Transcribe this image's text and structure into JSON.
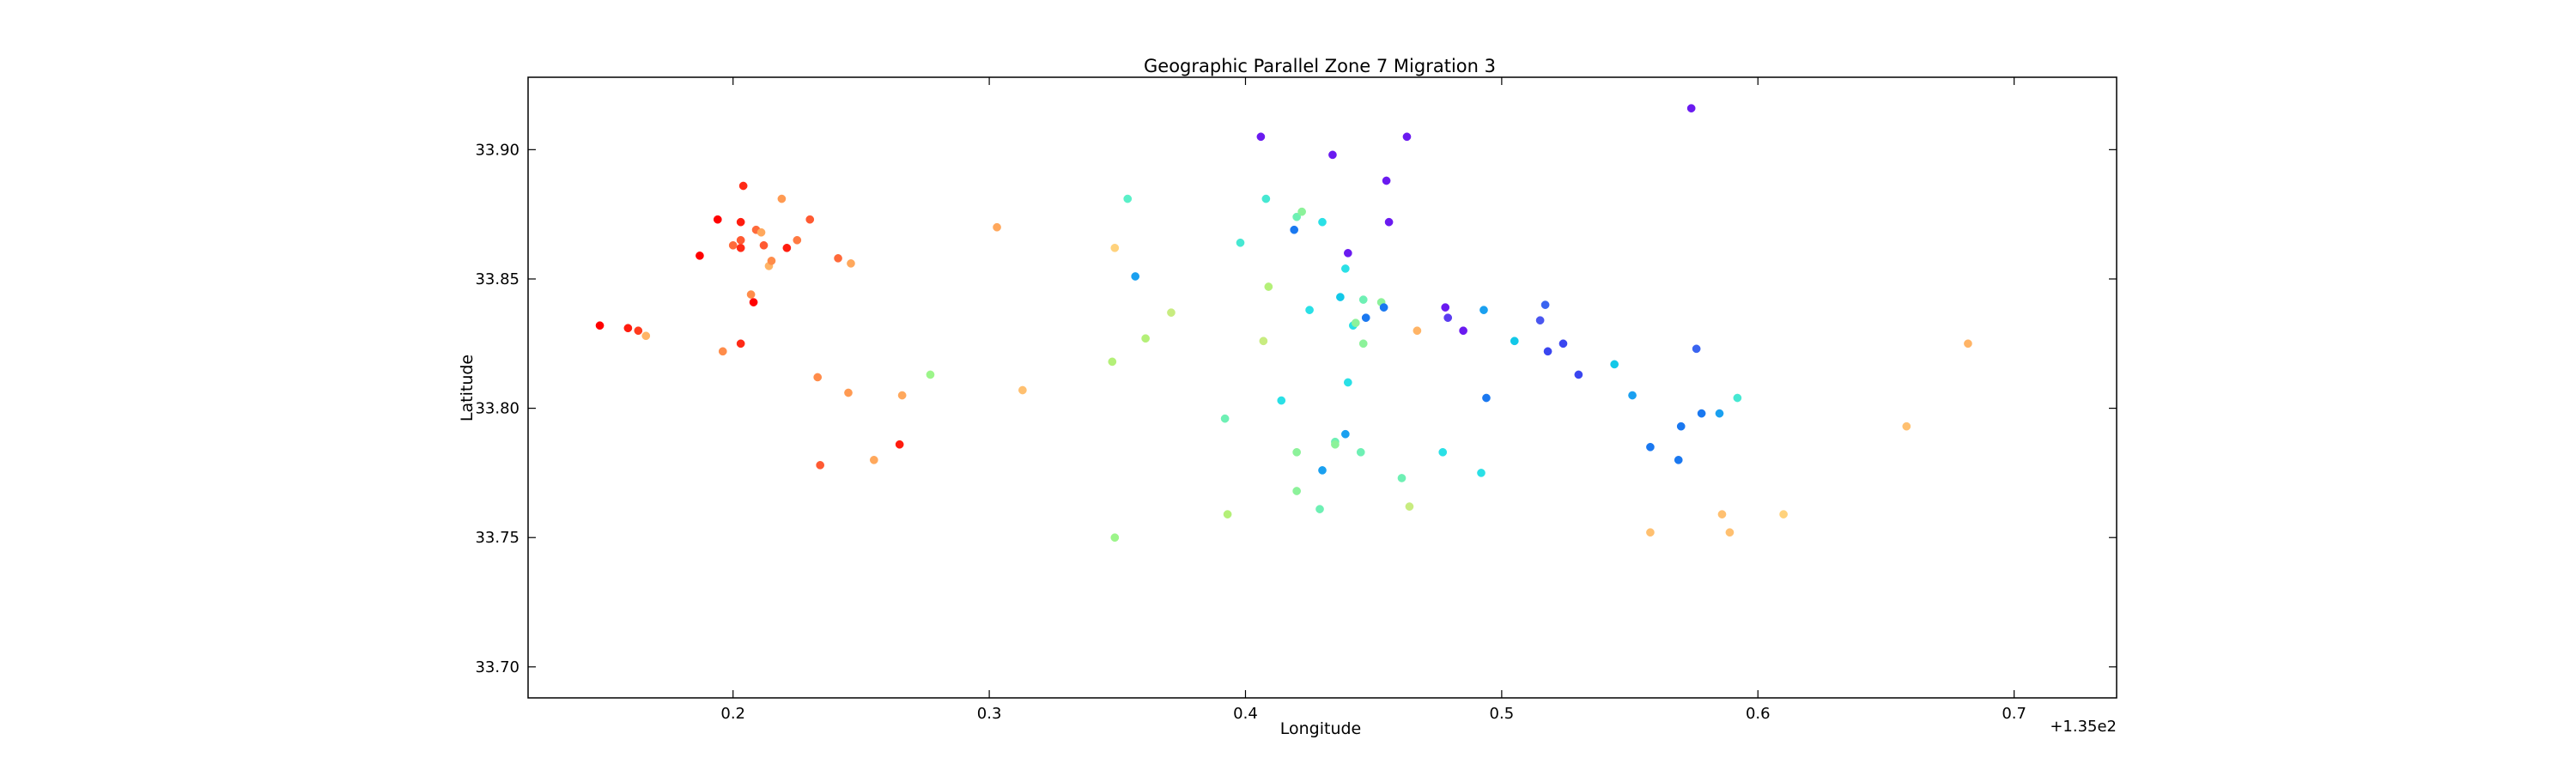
{
  "chart_data": {
    "type": "scatter",
    "title": "Geographic Parallel Zone 7 Migration 3",
    "xlabel": "Longitude",
    "ylabel": "Latitude",
    "x_offset_label": "+1.35e2",
    "xlim": [
      0.12,
      0.74
    ],
    "ylim": [
      33.688,
      33.928
    ],
    "x_ticks": [
      0.2,
      0.3,
      0.4,
      0.5,
      0.6,
      0.7
    ],
    "x_tick_labels": [
      "0.2",
      "0.3",
      "0.4",
      "0.5",
      "0.6",
      "0.7"
    ],
    "y_ticks": [
      33.7,
      33.75,
      33.8,
      33.85,
      33.9
    ],
    "y_tick_labels": [
      "33.70",
      "33.75",
      "33.80",
      "33.85",
      "33.90"
    ],
    "grid": false,
    "colormap": "rainbow",
    "points": [
      {
        "x": 0.148,
        "y": 33.832,
        "color": "#ff0000"
      },
      {
        "x": 0.159,
        "y": 33.831,
        "color": "#ff1c0e"
      },
      {
        "x": 0.163,
        "y": 33.83,
        "color": "#ff3a1d"
      },
      {
        "x": 0.166,
        "y": 33.828,
        "color": "#ffb466"
      },
      {
        "x": 0.187,
        "y": 33.859,
        "color": "#ff0000"
      },
      {
        "x": 0.194,
        "y": 33.873,
        "color": "#ff0000"
      },
      {
        "x": 0.196,
        "y": 33.822,
        "color": "#ff8c4a"
      },
      {
        "x": 0.2,
        "y": 33.863,
        "color": "#ff6a3a"
      },
      {
        "x": 0.203,
        "y": 33.872,
        "color": "#ff1c0e"
      },
      {
        "x": 0.203,
        "y": 33.862,
        "color": "#ff2a16"
      },
      {
        "x": 0.203,
        "y": 33.865,
        "color": "#ff5a32"
      },
      {
        "x": 0.203,
        "y": 33.825,
        "color": "#ff2a16"
      },
      {
        "x": 0.204,
        "y": 33.886,
        "color": "#ff2a16"
      },
      {
        "x": 0.207,
        "y": 33.844,
        "color": "#ff8c4a"
      },
      {
        "x": 0.208,
        "y": 33.841,
        "color": "#ff0000"
      },
      {
        "x": 0.209,
        "y": 33.869,
        "color": "#ff6a3a"
      },
      {
        "x": 0.211,
        "y": 33.868,
        "color": "#ffa85c"
      },
      {
        "x": 0.212,
        "y": 33.863,
        "color": "#ff5a32"
      },
      {
        "x": 0.214,
        "y": 33.855,
        "color": "#ffb466"
      },
      {
        "x": 0.215,
        "y": 33.857,
        "color": "#ff8c4a"
      },
      {
        "x": 0.219,
        "y": 33.881,
        "color": "#ff9a52"
      },
      {
        "x": 0.221,
        "y": 33.862,
        "color": "#ff1c0e"
      },
      {
        "x": 0.225,
        "y": 33.865,
        "color": "#ff7a42"
      },
      {
        "x": 0.23,
        "y": 33.873,
        "color": "#ff5a32"
      },
      {
        "x": 0.233,
        "y": 33.812,
        "color": "#ff8c4a"
      },
      {
        "x": 0.234,
        "y": 33.778,
        "color": "#ff5a32"
      },
      {
        "x": 0.241,
        "y": 33.858,
        "color": "#ff6a3a"
      },
      {
        "x": 0.245,
        "y": 33.806,
        "color": "#ff9a52"
      },
      {
        "x": 0.246,
        "y": 33.856,
        "color": "#ffa85c"
      },
      {
        "x": 0.255,
        "y": 33.78,
        "color": "#ffa85c"
      },
      {
        "x": 0.265,
        "y": 33.786,
        "color": "#ff1c0e"
      },
      {
        "x": 0.266,
        "y": 33.805,
        "color": "#ffa85c"
      },
      {
        "x": 0.277,
        "y": 33.813,
        "color": "#9cf58a"
      },
      {
        "x": 0.303,
        "y": 33.87,
        "color": "#ffa85c"
      },
      {
        "x": 0.313,
        "y": 33.807,
        "color": "#ffc070"
      },
      {
        "x": 0.348,
        "y": 33.818,
        "color": "#b4f078"
      },
      {
        "x": 0.349,
        "y": 33.862,
        "color": "#ffd27c"
      },
      {
        "x": 0.349,
        "y": 33.75,
        "color": "#9cf58a"
      },
      {
        "x": 0.354,
        "y": 33.881,
        "color": "#5af0c8"
      },
      {
        "x": 0.357,
        "y": 33.851,
        "color": "#1aa0f0"
      },
      {
        "x": 0.361,
        "y": 33.827,
        "color": "#b4f078"
      },
      {
        "x": 0.371,
        "y": 33.837,
        "color": "#c8ec80"
      },
      {
        "x": 0.392,
        "y": 33.796,
        "color": "#6ef0b4"
      },
      {
        "x": 0.393,
        "y": 33.759,
        "color": "#b4f078"
      },
      {
        "x": 0.398,
        "y": 33.864,
        "color": "#46e8d2"
      },
      {
        "x": 0.406,
        "y": 33.905,
        "color": "#6a1af0"
      },
      {
        "x": 0.407,
        "y": 33.826,
        "color": "#c8ec80"
      },
      {
        "x": 0.408,
        "y": 33.881,
        "color": "#46e8d2"
      },
      {
        "x": 0.409,
        "y": 33.847,
        "color": "#b4f078"
      },
      {
        "x": 0.414,
        "y": 33.803,
        "color": "#2ae0e6"
      },
      {
        "x": 0.419,
        "y": 33.869,
        "color": "#1a78f0"
      },
      {
        "x": 0.42,
        "y": 33.768,
        "color": "#8cf29a"
      },
      {
        "x": 0.42,
        "y": 33.783,
        "color": "#8cf29a"
      },
      {
        "x": 0.42,
        "y": 33.874,
        "color": "#6ef0b4"
      },
      {
        "x": 0.422,
        "y": 33.876,
        "color": "#8cf29a"
      },
      {
        "x": 0.425,
        "y": 33.838,
        "color": "#2ae0e6"
      },
      {
        "x": 0.429,
        "y": 33.761,
        "color": "#6ef0b4"
      },
      {
        "x": 0.43,
        "y": 33.776,
        "color": "#1aa0f0"
      },
      {
        "x": 0.43,
        "y": 33.872,
        "color": "#2ae0e6"
      },
      {
        "x": 0.434,
        "y": 33.898,
        "color": "#6a1af0"
      },
      {
        "x": 0.435,
        "y": 33.787,
        "color": "#6ef0b4"
      },
      {
        "x": 0.435,
        "y": 33.786,
        "color": "#8cf29a"
      },
      {
        "x": 0.437,
        "y": 33.843,
        "color": "#12c8e8"
      },
      {
        "x": 0.439,
        "y": 33.79,
        "color": "#1aa0f0"
      },
      {
        "x": 0.439,
        "y": 33.854,
        "color": "#2ae0e6"
      },
      {
        "x": 0.44,
        "y": 33.86,
        "color": "#6a1af0"
      },
      {
        "x": 0.44,
        "y": 33.81,
        "color": "#2ae0e6"
      },
      {
        "x": 0.442,
        "y": 33.832,
        "color": "#2ae0e6"
      },
      {
        "x": 0.443,
        "y": 33.833,
        "color": "#8cf29a"
      },
      {
        "x": 0.445,
        "y": 33.783,
        "color": "#6ef0b4"
      },
      {
        "x": 0.446,
        "y": 33.825,
        "color": "#8cf29a"
      },
      {
        "x": 0.446,
        "y": 33.842,
        "color": "#6ef0b4"
      },
      {
        "x": 0.447,
        "y": 33.835,
        "color": "#1a78f0"
      },
      {
        "x": 0.453,
        "y": 33.841,
        "color": "#8cf29a"
      },
      {
        "x": 0.454,
        "y": 33.839,
        "color": "#1a78f0"
      },
      {
        "x": 0.455,
        "y": 33.888,
        "color": "#6a1af0"
      },
      {
        "x": 0.456,
        "y": 33.872,
        "color": "#6a1af0"
      },
      {
        "x": 0.461,
        "y": 33.773,
        "color": "#6ef0b4"
      },
      {
        "x": 0.463,
        "y": 33.905,
        "color": "#6a1af0"
      },
      {
        "x": 0.464,
        "y": 33.762,
        "color": "#c8ec80"
      },
      {
        "x": 0.467,
        "y": 33.83,
        "color": "#ffb466"
      },
      {
        "x": 0.477,
        "y": 33.783,
        "color": "#2ae0e6"
      },
      {
        "x": 0.478,
        "y": 33.839,
        "color": "#6a1af0"
      },
      {
        "x": 0.479,
        "y": 33.835,
        "color": "#5a3cf0"
      },
      {
        "x": 0.485,
        "y": 33.83,
        "color": "#6a1af0"
      },
      {
        "x": 0.492,
        "y": 33.775,
        "color": "#2ae0e6"
      },
      {
        "x": 0.493,
        "y": 33.838,
        "color": "#1aa0f0"
      },
      {
        "x": 0.494,
        "y": 33.804,
        "color": "#1a78f0"
      },
      {
        "x": 0.505,
        "y": 33.826,
        "color": "#12c8e8"
      },
      {
        "x": 0.515,
        "y": 33.834,
        "color": "#4a56f0"
      },
      {
        "x": 0.517,
        "y": 33.84,
        "color": "#3a64f0"
      },
      {
        "x": 0.518,
        "y": 33.822,
        "color": "#3a46f0"
      },
      {
        "x": 0.524,
        "y": 33.825,
        "color": "#3a46f0"
      },
      {
        "x": 0.53,
        "y": 33.813,
        "color": "#3a46f0"
      },
      {
        "x": 0.544,
        "y": 33.817,
        "color": "#12c8e8"
      },
      {
        "x": 0.551,
        "y": 33.805,
        "color": "#1aa0f0"
      },
      {
        "x": 0.558,
        "y": 33.752,
        "color": "#ffc070"
      },
      {
        "x": 0.558,
        "y": 33.785,
        "color": "#1a78f0"
      },
      {
        "x": 0.569,
        "y": 33.78,
        "color": "#1a78f0"
      },
      {
        "x": 0.57,
        "y": 33.793,
        "color": "#1a78f0"
      },
      {
        "x": 0.574,
        "y": 33.916,
        "color": "#6a1af0"
      },
      {
        "x": 0.576,
        "y": 33.823,
        "color": "#3a64f0"
      },
      {
        "x": 0.578,
        "y": 33.798,
        "color": "#1a78f0"
      },
      {
        "x": 0.585,
        "y": 33.798,
        "color": "#1aa0f0"
      },
      {
        "x": 0.586,
        "y": 33.759,
        "color": "#ffc070"
      },
      {
        "x": 0.589,
        "y": 33.752,
        "color": "#ffc070"
      },
      {
        "x": 0.592,
        "y": 33.804,
        "color": "#46e8d2"
      },
      {
        "x": 0.61,
        "y": 33.759,
        "color": "#ffd27c"
      },
      {
        "x": 0.658,
        "y": 33.793,
        "color": "#ffc070"
      },
      {
        "x": 0.682,
        "y": 33.825,
        "color": "#ffb466"
      }
    ]
  }
}
